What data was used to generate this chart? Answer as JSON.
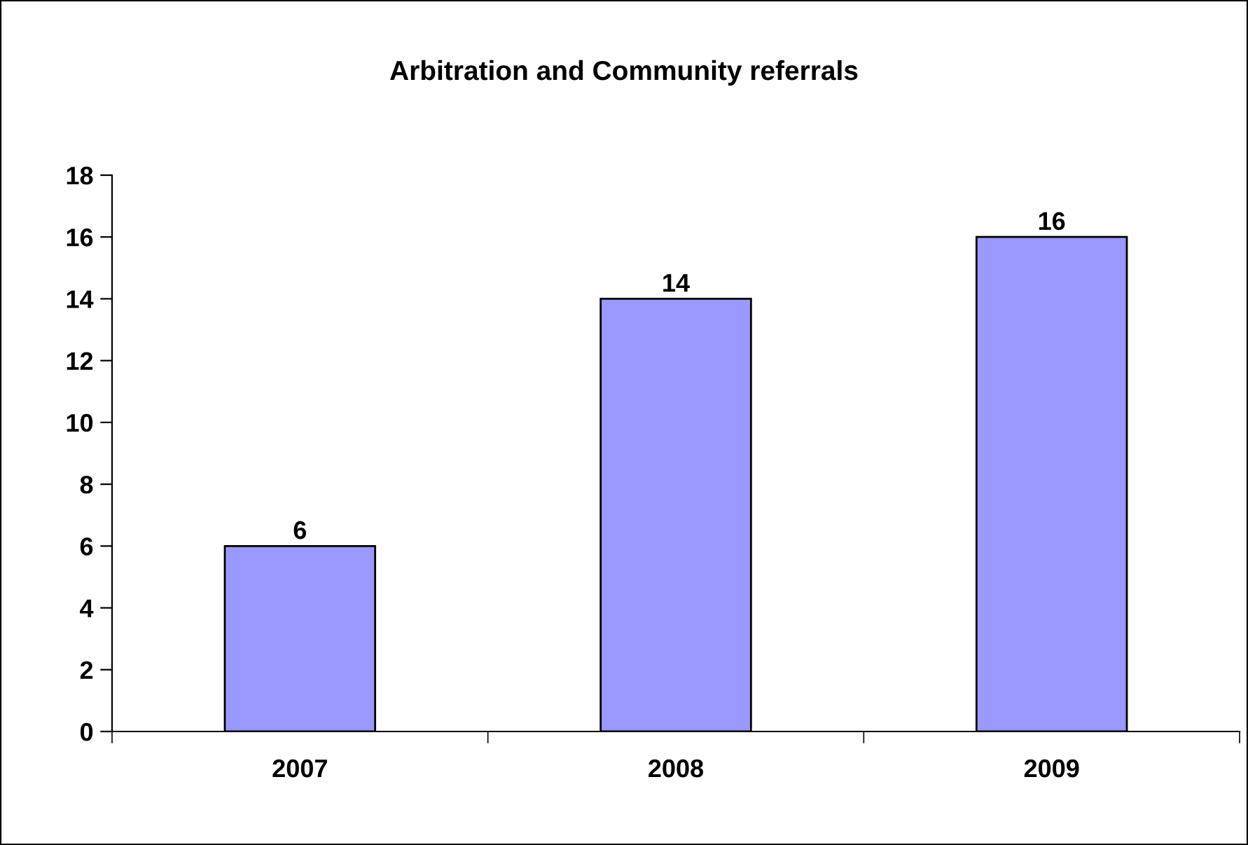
{
  "chart_data": {
    "type": "bar",
    "title": "Arbitration and Community referrals",
    "categories": [
      "2007",
      "2008",
      "2009"
    ],
    "values": [
      6,
      14,
      16
    ],
    "color": "#9999ff",
    "ylim": [
      0,
      18
    ],
    "yticks": [
      0,
      2,
      4,
      6,
      8,
      10,
      12,
      14,
      16,
      18
    ],
    "data_labels": true,
    "grid": false,
    "legend": false
  }
}
